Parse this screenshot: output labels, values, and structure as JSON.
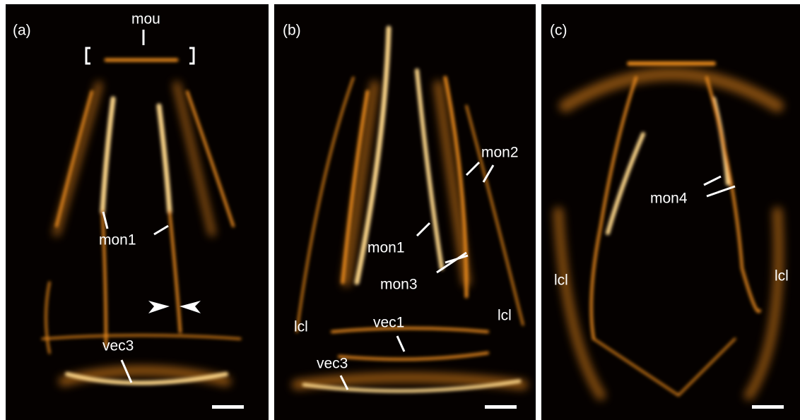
{
  "panels": [
    {
      "label": "(a)",
      "annotations": [
        "mou",
        "mon1",
        "vec3"
      ]
    },
    {
      "label": "(b)",
      "annotations": [
        "mon2",
        "mon1",
        "mon3",
        "lcl",
        "vec1",
        "vec3",
        "lcl"
      ]
    },
    {
      "label": "(c)",
      "annotations": [
        "mon4",
        "lcl",
        "lcl"
      ]
    }
  ]
}
